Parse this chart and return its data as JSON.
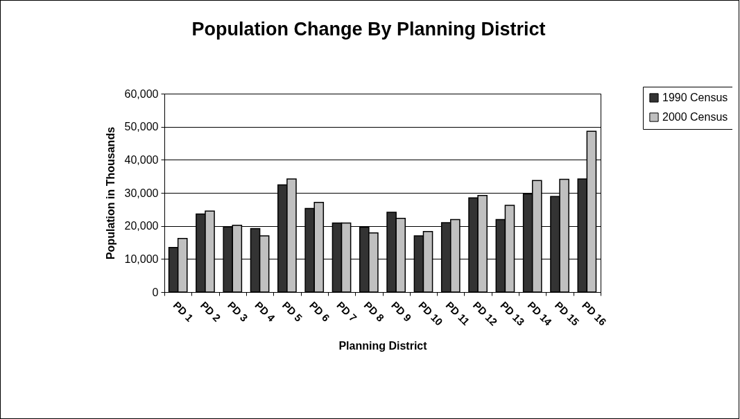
{
  "chart_data": {
    "type": "bar",
    "title": "Population Change By Planning District",
    "xlabel": "Planning District",
    "ylabel": "Population in Thousands",
    "categories": [
      "PD 1",
      "PD 2",
      "PD 3",
      "PD 4",
      "PD 5",
      "PD 6",
      "PD 7",
      "PD 8",
      "PD 9",
      "PD 10",
      "PD 11",
      "PD 12",
      "PD 13",
      "PD 14",
      "PD 15",
      "PD 16"
    ],
    "series": [
      {
        "name": "1990 Census",
        "color": "#333333",
        "values": [
          13500,
          23600,
          19700,
          19200,
          32400,
          25300,
          20900,
          19600,
          24100,
          17000,
          21000,
          28500,
          21900,
          29700,
          28900,
          34200
        ]
      },
      {
        "name": "2000 Census",
        "color": "#c0c0c0",
        "values": [
          16200,
          24500,
          20200,
          17000,
          34200,
          27100,
          20900,
          17900,
          22300,
          18300,
          21900,
          29200,
          26200,
          33700,
          34100,
          48600
        ]
      }
    ],
    "ylim": [
      0,
      60000
    ],
    "yticks": [
      {
        "value": 0,
        "label": "0"
      },
      {
        "value": 10000,
        "label": "10,000"
      },
      {
        "value": 20000,
        "label": "20,000"
      },
      {
        "value": 30000,
        "label": "30,000"
      },
      {
        "value": 40000,
        "label": "40,000"
      },
      {
        "value": 50000,
        "label": "50,000"
      },
      {
        "value": 60000,
        "label": "60,000"
      }
    ],
    "grid": "y",
    "legend": "right"
  }
}
